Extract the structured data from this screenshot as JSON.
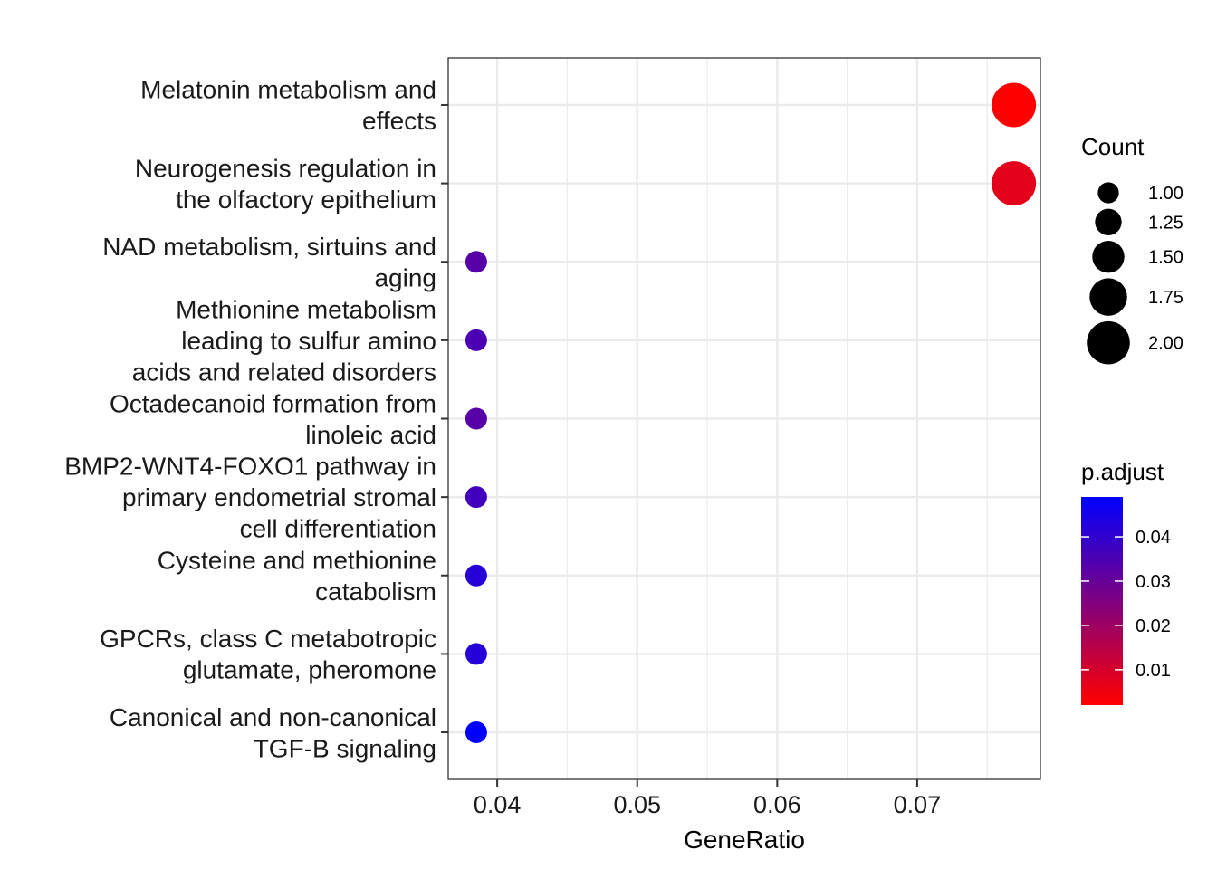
{
  "chart_data": {
    "type": "scatter",
    "xlabel": "GeneRatio",
    "ylabel": "",
    "xlim": [
      0.0365,
      0.0788
    ],
    "x_ticks": [
      {
        "value": 0.04,
        "label": "0.04"
      },
      {
        "value": 0.05,
        "label": "0.05"
      },
      {
        "value": 0.06,
        "label": "0.06"
      },
      {
        "value": 0.07,
        "label": "0.07"
      }
    ],
    "points": [
      {
        "label_lines": [
          "Melatonin metabolism and",
          "effects"
        ],
        "x": 0.0769,
        "count": 2,
        "p_adjust": 0.002
      },
      {
        "label_lines": [
          "Neurogenesis regulation in",
          "the olfactory epithelium"
        ],
        "x": 0.0769,
        "count": 2,
        "p_adjust": 0.007
      },
      {
        "label_lines": [
          "NAD metabolism, sirtuins and",
          "aging"
        ],
        "x": 0.0385,
        "count": 1,
        "p_adjust": 0.033
      },
      {
        "label_lines": [
          "Methionine metabolism",
          "leading to sulfur amino",
          "acids and related disorders"
        ],
        "x": 0.0385,
        "count": 1,
        "p_adjust": 0.035
      },
      {
        "label_lines": [
          "Octadecanoid formation from",
          "linoleic acid"
        ],
        "x": 0.0385,
        "count": 1,
        "p_adjust": 0.033
      },
      {
        "label_lines": [
          "BMP2-WNT4-FOXO1 pathway in",
          "primary endometrial stromal",
          "cell differentiation"
        ],
        "x": 0.0385,
        "count": 1,
        "p_adjust": 0.037
      },
      {
        "label_lines": [
          "Cysteine and methionine",
          "catabolism"
        ],
        "x": 0.0385,
        "count": 1,
        "p_adjust": 0.042
      },
      {
        "label_lines": [
          "GPCRs, class C metabotropic",
          "glutamate, pheromone"
        ],
        "x": 0.0385,
        "count": 1,
        "p_adjust": 0.042
      },
      {
        "label_lines": [
          "Canonical and non-canonical",
          "TGF-B signaling"
        ],
        "x": 0.0385,
        "count": 1,
        "p_adjust": 0.049
      }
    ],
    "size_legend": {
      "title": "Count",
      "entries": [
        {
          "value": 1.0,
          "label": "1.00"
        },
        {
          "value": 1.25,
          "label": "1.25"
        },
        {
          "value": 1.5,
          "label": "1.50"
        },
        {
          "value": 1.75,
          "label": "1.75"
        },
        {
          "value": 2.0,
          "label": "2.00"
        }
      ]
    },
    "color_legend": {
      "title": "p.adjust",
      "range": [
        0.002,
        0.049
      ],
      "low_color": "#ff0000",
      "high_color": "#0000ff",
      "ticks": [
        {
          "value": 0.01,
          "label": "0.01"
        },
        {
          "value": 0.02,
          "label": "0.02"
        },
        {
          "value": 0.03,
          "label": "0.03"
        },
        {
          "value": 0.04,
          "label": "0.04"
        }
      ]
    }
  }
}
